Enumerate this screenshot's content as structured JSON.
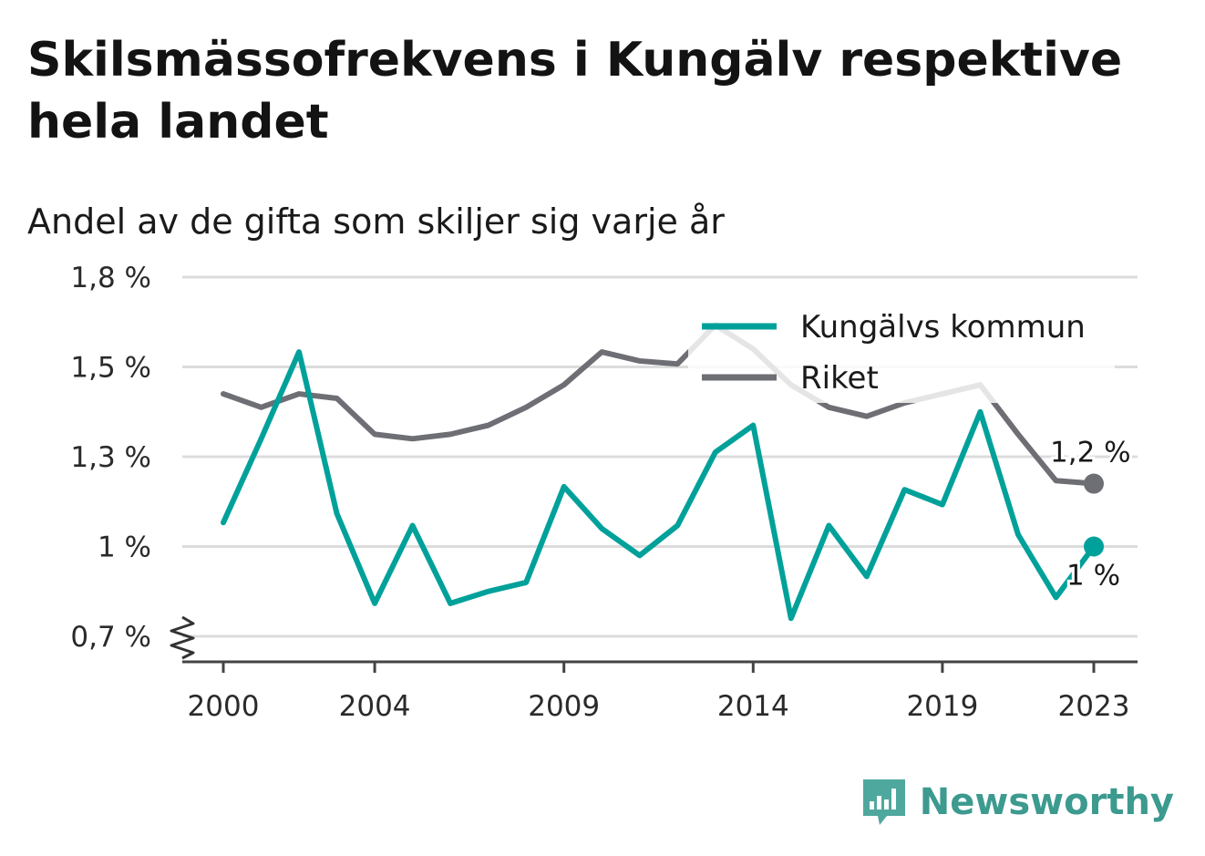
{
  "header": {
    "title": "Skilsmässofrekvens i Kungälv respektive hela landet",
    "subtitle": "Andel av de gifta som skiljer sig varje år"
  },
  "brand": {
    "name": "Newsworthy",
    "icon": "newsworthy-logo-icon",
    "color": "#3c9a8f"
  },
  "chart_data": {
    "type": "line",
    "x": [
      2000,
      2001,
      2002,
      2003,
      2004,
      2005,
      2006,
      2007,
      2008,
      2009,
      2010,
      2011,
      2012,
      2013,
      2014,
      2015,
      2016,
      2017,
      2018,
      2019,
      2020,
      2021,
      2022,
      2023
    ],
    "series": [
      {
        "name": "Kungälvs kommun",
        "color": "#00a19a",
        "values": [
          1.08,
          1.34,
          1.55,
          1.11,
          0.81,
          1.07,
          0.81,
          0.85,
          0.88,
          1.2,
          1.06,
          0.97,
          1.07,
          1.31,
          1.37,
          0.76,
          1.07,
          0.9,
          1.19,
          1.14,
          1.4,
          1.04,
          0.83,
          1.0
        ],
        "end_label": "1 %"
      },
      {
        "name": "Riket",
        "color": "#6e6e75",
        "values": [
          1.44,
          1.41,
          1.44,
          1.43,
          1.35,
          1.34,
          1.35,
          1.37,
          1.41,
          1.46,
          1.55,
          1.52,
          1.51,
          1.64,
          1.56,
          1.46,
          1.41,
          1.39,
          1.42,
          1.44,
          1.46,
          1.35,
          1.22,
          1.21
        ],
        "end_label": "1,2 %"
      }
    ],
    "y_ticks": [
      "0,7 %",
      "1 %",
      "1,3 %",
      "1,5 %",
      "1,8 %"
    ],
    "x_ticks": [
      "2000",
      "2004",
      "2009",
      "2014",
      "2019",
      "2023"
    ],
    "ylim": [
      0.7,
      1.8
    ],
    "grid": true,
    "legend_position": "top-right",
    "axis_break": true
  }
}
